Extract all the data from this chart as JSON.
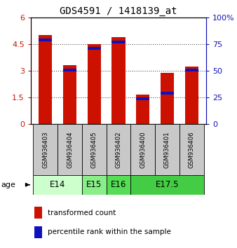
{
  "title": "GDS4591 / 1418139_at",
  "samples": [
    "GSM936403",
    "GSM936404",
    "GSM936405",
    "GSM936402",
    "GSM936400",
    "GSM936401",
    "GSM936406"
  ],
  "transformed_counts": [
    5.0,
    3.3,
    4.5,
    4.88,
    1.65,
    2.88,
    3.22
  ],
  "percentile_ranks": [
    80,
    52,
    72,
    78,
    25,
    30,
    52
  ],
  "age_groups": [
    {
      "label": "E14",
      "start": 0,
      "end": 1,
      "color": "#ccffcc"
    },
    {
      "label": "E15",
      "start": 2,
      "end": 2,
      "color": "#88dd88"
    },
    {
      "label": "E16",
      "start": 3,
      "end": 3,
      "color": "#55cc55"
    },
    {
      "label": "E17.5",
      "start": 4,
      "end": 6,
      "color": "#44cc44"
    }
  ],
  "age_spans": [
    {
      "label": "E14",
      "indices": [
        0,
        1
      ],
      "color": "#ccffcc"
    },
    {
      "label": "E15",
      "indices": [
        2
      ],
      "color": "#88ee88"
    },
    {
      "label": "E16",
      "indices": [
        3
      ],
      "color": "#55dd55"
    },
    {
      "label": "E17.5",
      "indices": [
        4,
        5,
        6
      ],
      "color": "#44cc44"
    }
  ],
  "ylim_left": [
    0,
    6
  ],
  "ylim_right": [
    0,
    100
  ],
  "yticks_left": [
    0,
    1.5,
    3,
    4.5,
    6
  ],
  "yticks_right": [
    0,
    25,
    50,
    75,
    100
  ],
  "yticklabels_left": [
    "0",
    "1.5",
    "3",
    "4.5",
    "6"
  ],
  "yticklabels_right": [
    "0",
    "25",
    "50",
    "75",
    "100%"
  ],
  "bar_color_red": "#cc1100",
  "bar_color_blue": "#1111bb",
  "bar_width": 0.55,
  "background_color": "#ffffff",
  "plot_bg_color": "#ffffff",
  "grid_color": "#555555",
  "sample_box_color": "#c8c8c8",
  "legend_red_label": "transformed count",
  "legend_blue_label": "percentile rank within the sample"
}
